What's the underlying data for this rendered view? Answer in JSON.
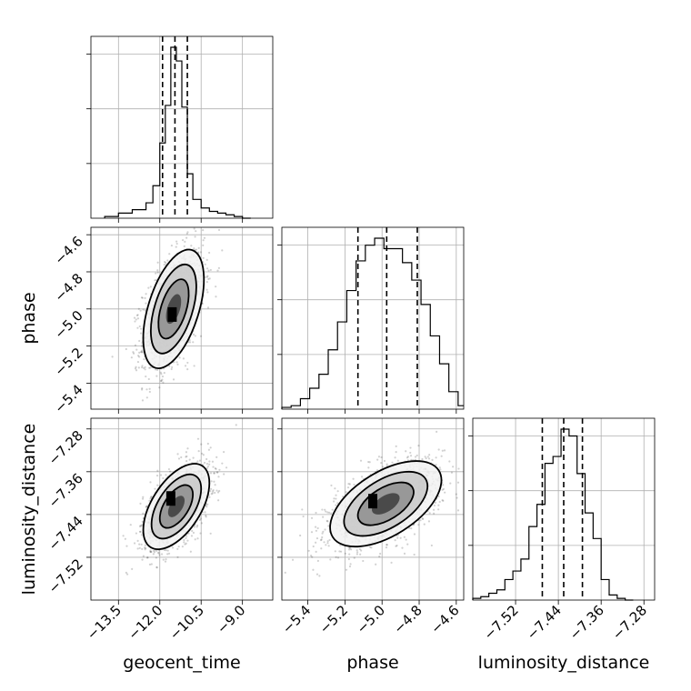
{
  "chart_data": {
    "type": "corner",
    "parameters": [
      "geocent_time",
      "phase",
      "luminosity_distance"
    ],
    "axis_labels": {
      "geocent_time": "geocent_time",
      "phase": "phase",
      "luminosity_distance": "luminosity_distance"
    },
    "ranges": {
      "geocent_time": [
        -14.5,
        -7.9
      ],
      "phase": [
        -5.54,
        -4.56
      ],
      "luminosity_distance": [
        -7.6,
        -7.26
      ]
    },
    "ticks": {
      "geocent_time": [
        -13.5,
        -12.0,
        -10.5,
        -9.0
      ],
      "phase": [
        -5.4,
        -5.2,
        -5.0,
        -4.8,
        -4.6
      ],
      "luminosity_distance": [
        -7.52,
        -7.44,
        -7.36,
        -7.28
      ]
    },
    "tick_labels": {
      "geocent_time": [
        "−13.5",
        "−12.0",
        "−10.5",
        "−9.0"
      ],
      "phase": [
        "−5.4",
        "−5.2",
        "−5.0",
        "−4.8",
        "−4.6"
      ],
      "luminosity_distance": [
        "−7.52",
        "−7.44",
        "−7.36",
        "−7.28"
      ]
    },
    "quantiles": {
      "geocent_time": [
        -11.9,
        -11.45,
        -11.0
      ],
      "phase": [
        -5.13,
        -4.975,
        -4.81
      ],
      "luminosity_distance": [
        -7.47,
        -7.43,
        -7.395
      ]
    },
    "histograms": {
      "geocent_time": {
        "edges": [
          -14.0,
          -13.5,
          -13.0,
          -12.5,
          -12.25,
          -12.0,
          -11.8,
          -11.6,
          -11.4,
          -11.2,
          -11.0,
          -10.8,
          -10.5,
          -10.2,
          -9.9,
          -9.6,
          -9.3,
          -9.0,
          -8.7
        ],
        "counts": [
          0.01,
          0.03,
          0.05,
          0.09,
          0.19,
          0.44,
          0.66,
          1.0,
          0.92,
          0.65,
          0.26,
          0.11,
          0.06,
          0.04,
          0.03,
          0.02,
          0.01,
          0.0
        ]
      },
      "phase": {
        "edges": [
          -5.54,
          -5.49,
          -5.44,
          -5.39,
          -5.34,
          -5.29,
          -5.24,
          -5.19,
          -5.14,
          -5.09,
          -5.04,
          -4.99,
          -4.94,
          -4.89,
          -4.84,
          -4.79,
          -4.74,
          -4.69,
          -4.64,
          -4.59,
          -4.56
        ],
        "counts": [
          0.01,
          0.02,
          0.06,
          0.12,
          0.2,
          0.34,
          0.5,
          0.68,
          0.85,
          0.94,
          0.98,
          0.92,
          0.92,
          0.84,
          0.74,
          0.6,
          0.42,
          0.26,
          0.1,
          0.02
        ]
      },
      "luminosity_distance": {
        "edges": [
          -7.6,
          -7.585,
          -7.57,
          -7.555,
          -7.54,
          -7.525,
          -7.51,
          -7.495,
          -7.48,
          -7.465,
          -7.45,
          -7.435,
          -7.42,
          -7.405,
          -7.39,
          -7.375,
          -7.36,
          -7.345,
          -7.33,
          -7.315,
          -7.3
        ],
        "counts": [
          0.01,
          0.02,
          0.04,
          0.06,
          0.12,
          0.17,
          0.24,
          0.43,
          0.56,
          0.8,
          0.84,
          1.0,
          0.96,
          0.74,
          0.51,
          0.36,
          0.12,
          0.03,
          0.01,
          0.0
        ]
      }
    },
    "pairs": [
      {
        "x": "geocent_time",
        "y": "phase",
        "mean": [
          -11.5,
          -5.0
        ],
        "std": [
          0.55,
          0.16
        ],
        "corr": 0.5,
        "peak": [
          -11.55,
          -5.03
        ],
        "levels": [
          "1 sigma",
          "1.5 sigma",
          "2 sigma"
        ]
      },
      {
        "x": "geocent_time",
        "y": "luminosity_distance",
        "mean": [
          -11.4,
          -7.425
        ],
        "std": [
          0.6,
          0.04
        ],
        "corr": 0.55,
        "peak": [
          -11.6,
          -7.41
        ],
        "levels": [
          "1 sigma",
          "1.5 sigma",
          "2 sigma"
        ]
      },
      {
        "x": "phase",
        "y": "luminosity_distance",
        "mean": [
          -4.98,
          -7.42
        ],
        "std": [
          0.15,
          0.04
        ],
        "corr": 0.55,
        "peak": [
          -5.05,
          -7.415
        ],
        "levels": [
          "1 sigma",
          "1.5 sigma",
          "2 sigma"
        ]
      }
    ],
    "grid": true,
    "legend": "none"
  }
}
